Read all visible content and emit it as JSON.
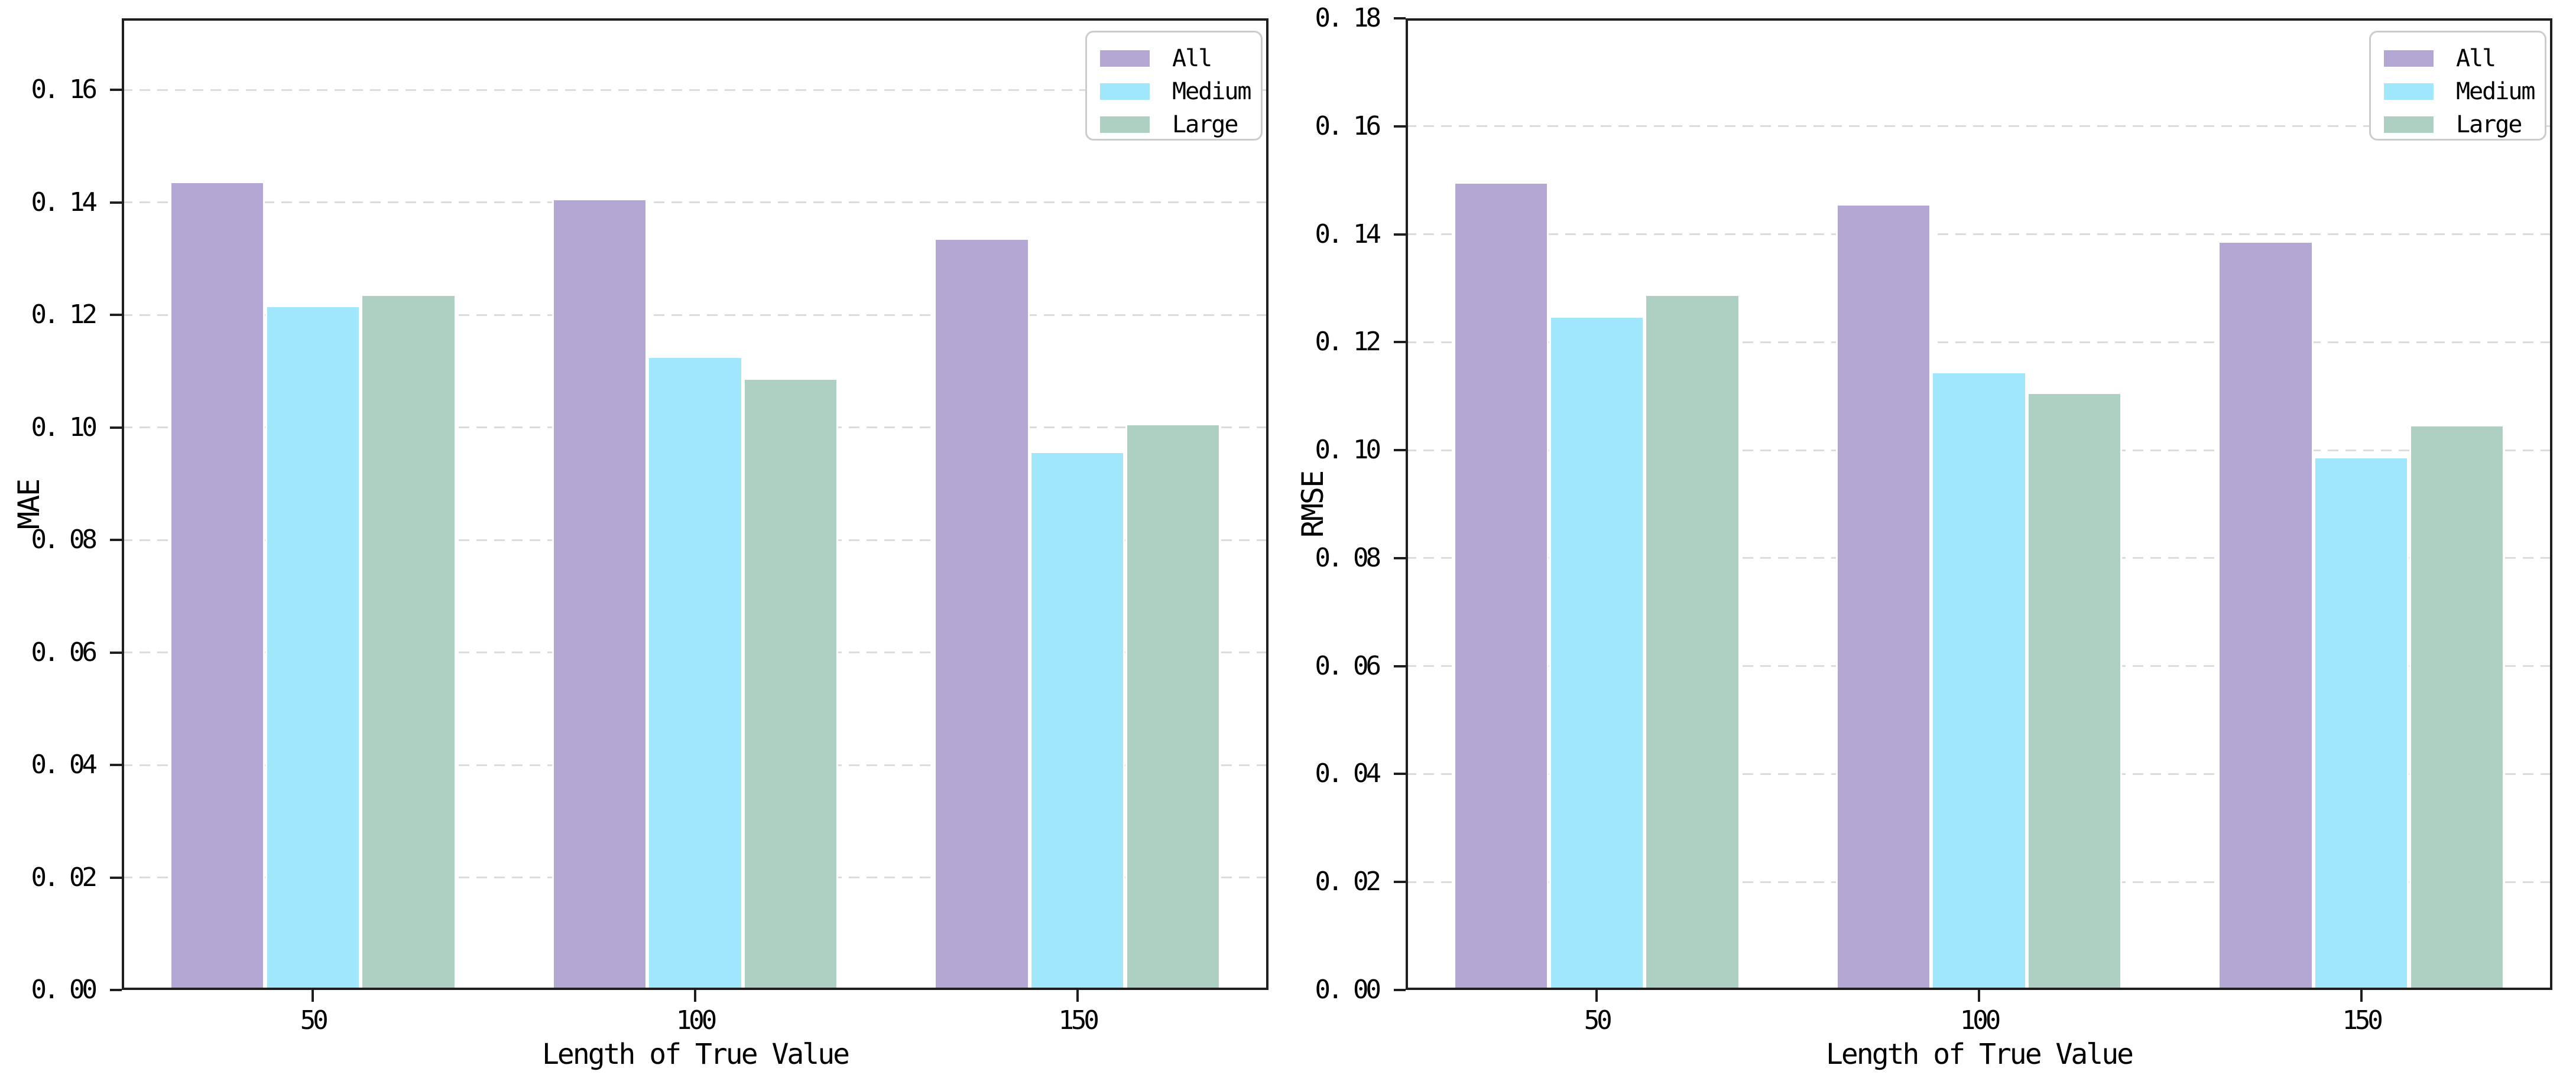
{
  "figure": {
    "background": "#ffffff",
    "grid_color": "#dcdcdc",
    "grid_style": "dashed horizontal",
    "axis_color": "#1f1f1f",
    "bar_edge_color": "#ffffff",
    "legend_border_color": "#cccccc",
    "legend_position": "upper right"
  },
  "chart_data": [
    {
      "type": "bar",
      "title": "",
      "xlabel": "Length of True Value",
      "ylabel": "MAE",
      "categories": [
        "50",
        "100",
        "150"
      ],
      "series": [
        {
          "name": "All",
          "color": "#b4a7d4",
          "values": [
            0.1437,
            0.1407,
            0.1337
          ]
        },
        {
          "name": "Medium",
          "color": "#a0e7fb",
          "values": [
            0.1217,
            0.1127,
            0.0957
          ]
        },
        {
          "name": "Large",
          "color": "#aed0c3",
          "values": [
            0.1237,
            0.1088,
            0.1007
          ]
        }
      ],
      "ylim": [
        0,
        0.1727
      ],
      "yticks": [
        0.0,
        0.02,
        0.04,
        0.06,
        0.08,
        0.1,
        0.12,
        0.14,
        0.16
      ],
      "ytick_labels": [
        "0. 00",
        "0. 02",
        "0. 04",
        "0. 06",
        "0. 08",
        "0. 10",
        "0. 12",
        "0. 14",
        "0. 16"
      ],
      "legend": [
        "All",
        "Medium",
        "Large"
      ],
      "legend_position": "upper right",
      "grid": "horizontal dashed"
    },
    {
      "type": "bar",
      "title": "",
      "xlabel": "Length of True Value",
      "ylabel": "RMSE",
      "categories": [
        "50",
        "100",
        "150"
      ],
      "series": [
        {
          "name": "All",
          "color": "#b4a7d4",
          "values": [
            0.1497,
            0.1456,
            0.1387
          ]
        },
        {
          "name": "Medium",
          "color": "#a0e7fb",
          "values": [
            0.1249,
            0.1146,
            0.0988
          ]
        },
        {
          "name": "Large",
          "color": "#aed0c3",
          "values": [
            0.1289,
            0.1107,
            0.1047
          ]
        }
      ],
      "ylim": [
        0,
        0.18
      ],
      "yticks": [
        0.0,
        0.02,
        0.04,
        0.06,
        0.08,
        0.1,
        0.12,
        0.14,
        0.16,
        0.18
      ],
      "ytick_labels": [
        "0. 00",
        "0. 02",
        "0. 04",
        "0. 06",
        "0. 08",
        "0. 10",
        "0. 12",
        "0. 14",
        "0. 16",
        "0. 18"
      ],
      "legend": [
        "All",
        "Medium",
        "Large"
      ],
      "legend_position": "upper right",
      "grid": "horizontal dashed"
    }
  ]
}
